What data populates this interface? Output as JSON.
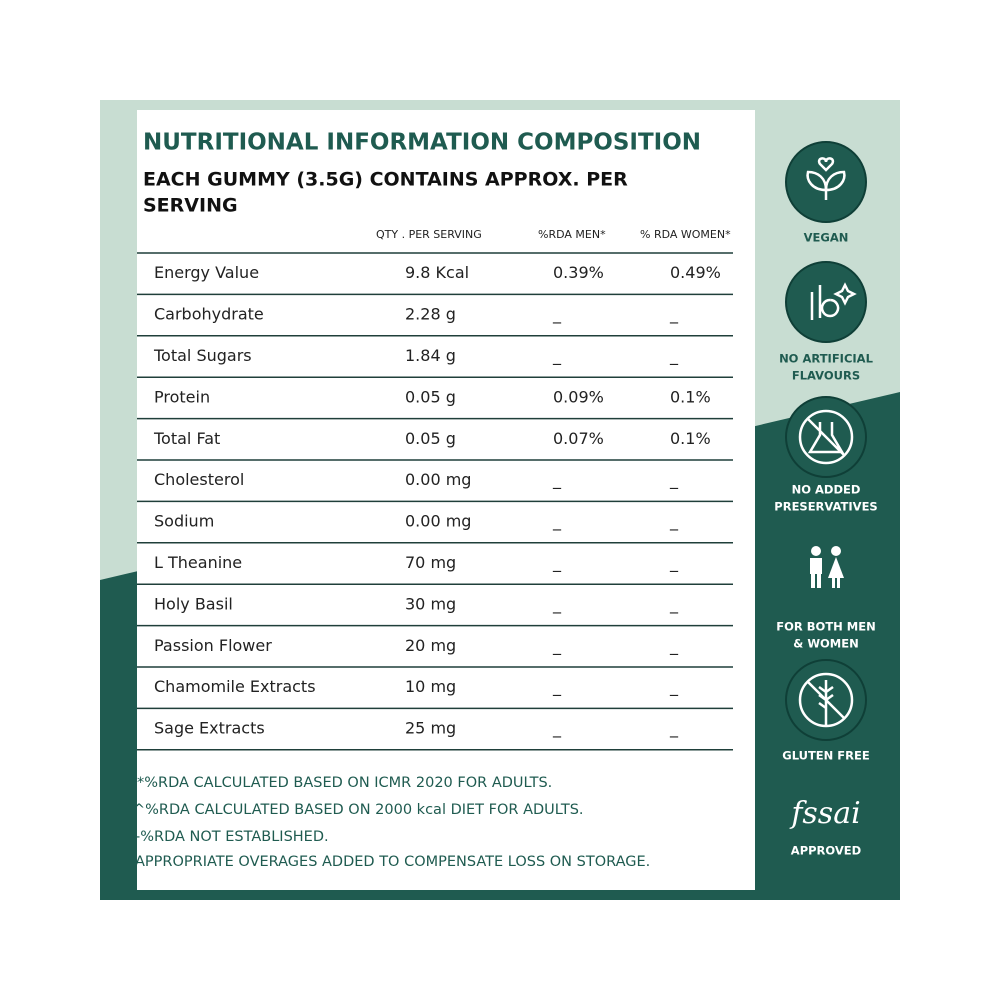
{
  "title": "NUTRITIONAL INFORMATION COMPOSITION",
  "subtitle": [
    "EACH GUMMY (3.5G) CONTAINS APPROX. PER",
    "SERVING"
  ],
  "table": {
    "headers": [
      "QTY . PER SERVING",
      "%RDA MEN*",
      "% RDA WOMEN*"
    ],
    "rows": [
      [
        "Energy Value",
        "9.8 Kcal",
        "0.39%",
        "0.49%"
      ],
      [
        "Carbohydrate",
        "2.28 g",
        "_",
        "_"
      ],
      [
        "Total Sugars",
        "1.84 g",
        "_",
        "_"
      ],
      [
        "Protein",
        "0.05 g",
        "0.09%",
        "0.1%"
      ],
      [
        "Total Fat",
        "0.05 g",
        "0.07%",
        "0.1%"
      ],
      [
        "Cholesterol",
        "0.00 mg",
        "_",
        "_"
      ],
      [
        "Sodium",
        "0.00 mg",
        "_",
        "_"
      ],
      [
        "L Theanine",
        "70 mg",
        "_",
        "_"
      ],
      [
        "Holy Basil",
        "30 mg",
        "_",
        "_"
      ],
      [
        "Passion Flower",
        "20 mg",
        "_",
        "_"
      ],
      [
        "Chamomile Extracts",
        "10 mg",
        "_",
        "_"
      ],
      [
        "Sage Extracts",
        "25 mg",
        "_",
        "_"
      ]
    ]
  },
  "footnotes": [
    "*%RDA CALCULATED BASED ON ICMR 2020 FOR ADULTS.",
    "^%RDA CALCULATED BASED ON 2000 kcal DIET FOR ADULTS.",
    "-%RDA NOT ESTABLISHED.",
    "APPROPRIATE OVERAGES ADDED TO COMPENSATE LOSS ON STORAGE."
  ],
  "badges": [
    {
      "label": [
        "VEGAN"
      ]
    },
    {
      "label": [
        "NO ARTIFICIAL",
        "FLAVOURS"
      ]
    },
    {
      "label": [
        "NO ADDED",
        "PRESERVATIVES"
      ]
    },
    {
      "label": [
        "FOR BOTH MEN",
        "& WOMEN"
      ]
    },
    {
      "label": [
        "GLUTEN FREE"
      ]
    },
    {
      "logo": "fssai",
      "label": [
        "APPROVED"
      ]
    }
  ]
}
